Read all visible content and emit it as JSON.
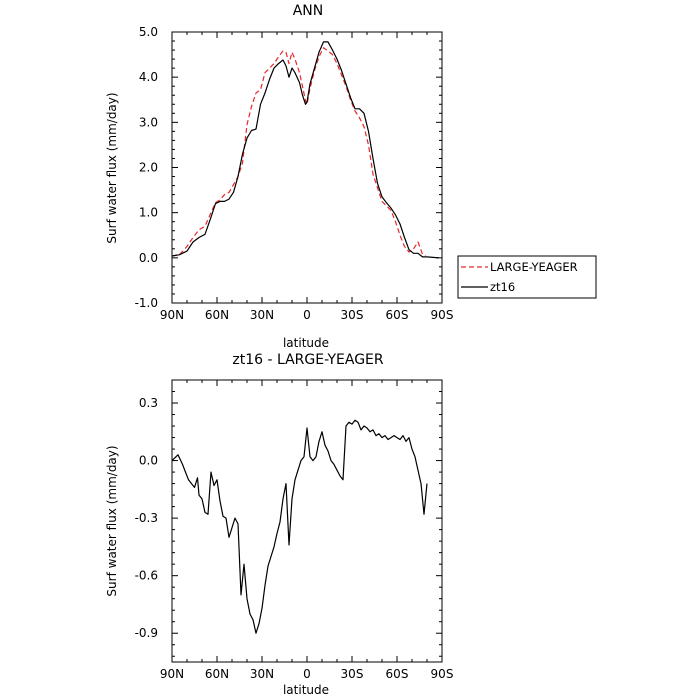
{
  "chart_data": [
    {
      "type": "line",
      "title": "ANN",
      "xlabel": "latitude",
      "ylabel": "Surf water flux (mm/day)",
      "xlim": [
        90,
        -90
      ],
      "ylim": [
        -1.0,
        5.0
      ],
      "xticks": [
        90,
        60,
        30,
        0,
        -30,
        -60,
        -90
      ],
      "xtick_labels": [
        "90N",
        "60N",
        "30N",
        "0",
        "30S",
        "60S",
        "90S"
      ],
      "yticks": [
        -1.0,
        0.0,
        1.0,
        2.0,
        3.0,
        4.0,
        5.0
      ],
      "ytick_labels": [
        "-1.0",
        "0.0",
        "1.0",
        "2.0",
        "3.0",
        "4.0",
        "5.0"
      ],
      "grid": false,
      "legend_position": "right, outside plot",
      "series": [
        {
          "name": "LARGE-YEAGER",
          "color": "#e8262a",
          "dash": "dashed",
          "x": [
            90,
            85,
            80,
            76,
            72,
            68,
            64,
            61,
            58,
            55,
            52,
            49,
            46,
            43,
            40,
            37,
            34,
            31,
            28,
            25,
            22,
            19,
            16,
            14,
            12,
            10,
            8,
            5,
            3,
            1,
            0,
            -2,
            -5,
            -8,
            -11,
            -14,
            -17,
            -20,
            -23,
            -26,
            -29,
            -32,
            -35,
            -38,
            -41,
            -44,
            -47,
            -50,
            -53,
            -56,
            -59,
            -62,
            -65,
            -68,
            -71,
            -74,
            -77,
            -79
          ],
          "y": [
            0.04,
            0.07,
            0.25,
            0.45,
            0.62,
            0.7,
            1.0,
            1.22,
            1.28,
            1.4,
            1.45,
            1.62,
            1.8,
            2.1,
            2.95,
            3.35,
            3.65,
            3.72,
            4.1,
            4.2,
            4.3,
            4.45,
            4.58,
            4.55,
            4.3,
            4.55,
            4.4,
            4.1,
            3.8,
            3.48,
            3.4,
            3.75,
            4.15,
            4.45,
            4.65,
            4.58,
            4.5,
            4.3,
            4.05,
            3.8,
            3.5,
            3.25,
            3.1,
            2.9,
            2.5,
            1.85,
            1.55,
            1.25,
            1.15,
            1.05,
            0.8,
            0.5,
            0.25,
            0.13,
            0.2,
            0.35,
            0.08,
            0.05
          ]
        },
        {
          "name": "zt16",
          "color": "#000000",
          "dash": "solid",
          "x": [
            90,
            85,
            80,
            76,
            72,
            68,
            64,
            61,
            58,
            55,
            52,
            49,
            46,
            43,
            40,
            37,
            34,
            31,
            28,
            25,
            22,
            19,
            16,
            14,
            12,
            10,
            8,
            5,
            3,
            1,
            0,
            -2,
            -5,
            -8,
            -11,
            -14,
            -17,
            -20,
            -23,
            -26,
            -29,
            -32,
            -35,
            -38,
            -41,
            -44,
            -47,
            -50,
            -53,
            -56,
            -59,
            -62,
            -65,
            -68,
            -71,
            -74,
            -77,
            -80,
            -84,
            -88
          ],
          "y": [
            0.04,
            0.07,
            0.15,
            0.35,
            0.45,
            0.52,
            0.9,
            1.2,
            1.25,
            1.25,
            1.3,
            1.45,
            1.8,
            2.3,
            2.65,
            2.82,
            2.85,
            3.4,
            3.65,
            3.95,
            4.2,
            4.3,
            4.38,
            4.25,
            4.0,
            4.2,
            4.1,
            3.88,
            3.6,
            3.4,
            3.45,
            3.85,
            4.2,
            4.55,
            4.78,
            4.78,
            4.6,
            4.4,
            4.15,
            3.85,
            3.55,
            3.3,
            3.3,
            3.2,
            2.8,
            2.2,
            1.65,
            1.35,
            1.22,
            1.1,
            0.95,
            0.75,
            0.45,
            0.18,
            0.1,
            0.1,
            0.02,
            0.02,
            0.01,
            0.0
          ]
        }
      ]
    },
    {
      "type": "line",
      "title": "zt16 - LARGE-YEAGER",
      "xlabel": "latitude",
      "ylabel": "Surf water flux (mm/day)",
      "xlim": [
        90,
        -90
      ],
      "ylim": [
        -1.05,
        0.42
      ],
      "xticks": [
        90,
        60,
        30,
        0,
        -30,
        -60,
        -90
      ],
      "xtick_labels": [
        "90N",
        "60N",
        "30N",
        "0",
        "30S",
        "60S",
        "90S"
      ],
      "yticks": [
        0.3,
        0.0,
        -0.3,
        -0.6,
        -0.9
      ],
      "ytick_labels": [
        "0.3",
        "0.0",
        "-0.3",
        "-0.6",
        "-0.9"
      ],
      "grid": false,
      "series": [
        {
          "color": "#000000",
          "dash": "solid",
          "x": [
            90,
            86,
            83,
            81,
            79,
            77,
            75,
            73,
            72,
            70,
            68,
            66,
            64,
            62,
            60,
            58,
            56,
            54,
            52,
            50,
            48,
            46,
            44,
            42,
            40,
            38,
            36,
            34,
            32,
            30,
            28,
            26,
            24,
            22,
            20,
            18,
            16,
            14,
            12,
            10,
            8,
            6,
            4,
            2,
            0,
            -2,
            -4,
            -6,
            -8,
            -10,
            -12,
            -14,
            -16,
            -18,
            -20,
            -22,
            -24,
            -26,
            -28,
            -30,
            -32,
            -34,
            -36,
            -38,
            -40,
            -42,
            -44,
            -46,
            -48,
            -50,
            -52,
            -54,
            -56,
            -58,
            -60,
            -62,
            -64,
            -66,
            -68,
            -70,
            -72,
            -74,
            -76,
            -78,
            -80
          ],
          "y": [
            0.0,
            0.03,
            -0.02,
            -0.06,
            -0.1,
            -0.12,
            -0.14,
            -0.09,
            -0.18,
            -0.2,
            -0.27,
            -0.28,
            -0.06,
            -0.13,
            -0.1,
            -0.21,
            -0.29,
            -0.3,
            -0.4,
            -0.35,
            -0.3,
            -0.33,
            -0.7,
            -0.54,
            -0.72,
            -0.8,
            -0.83,
            -0.9,
            -0.85,
            -0.77,
            -0.65,
            -0.55,
            -0.5,
            -0.45,
            -0.38,
            -0.32,
            -0.2,
            -0.12,
            -0.44,
            -0.2,
            -0.1,
            -0.05,
            0.0,
            0.02,
            0.17,
            0.02,
            0.0,
            0.02,
            0.1,
            0.15,
            0.08,
            0.05,
            0.0,
            -0.02,
            -0.05,
            -0.08,
            -0.1,
            0.18,
            0.2,
            0.19,
            0.21,
            0.2,
            0.16,
            0.18,
            0.17,
            0.15,
            0.16,
            0.13,
            0.14,
            0.12,
            0.13,
            0.11,
            0.12,
            0.13,
            0.12,
            0.11,
            0.13,
            0.1,
            0.12,
            0.06,
            0.02,
            -0.05,
            -0.12,
            -0.28,
            -0.12
          ]
        }
      ]
    }
  ]
}
